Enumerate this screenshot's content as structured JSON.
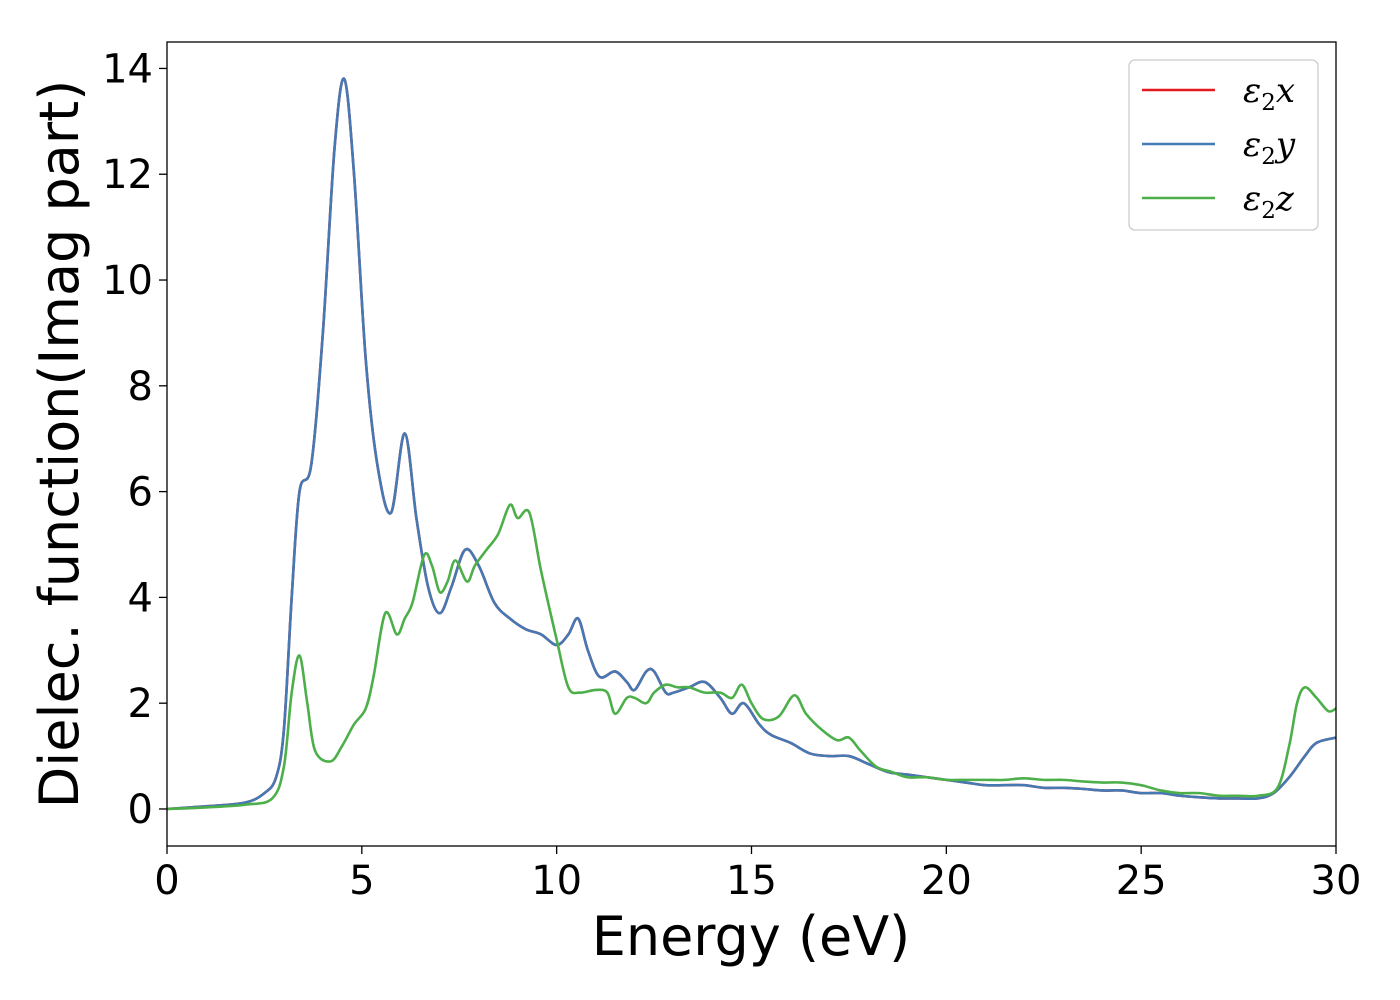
{
  "chart_data": {
    "type": "line",
    "title": "",
    "xlabel": "Energy (eV)",
    "ylabel": "Dielec. function(Imag part)",
    "xlim": [
      0,
      30
    ],
    "ylim": [
      -0.7,
      14.5
    ],
    "xticks": [
      0,
      5,
      10,
      15,
      20,
      25,
      30
    ],
    "yticks": [
      0,
      2,
      4,
      6,
      8,
      10,
      12,
      14
    ],
    "grid": false,
    "legend_position": "top-right",
    "series": [
      {
        "name": "ε₂x",
        "label_base": "ε",
        "label_sub": "2",
        "label_var": "x",
        "color": "#e41a1c",
        "points": [
          [
            0,
            0
          ],
          [
            1,
            0.05
          ],
          [
            2,
            0.12
          ],
          [
            2.5,
            0.3
          ],
          [
            2.8,
            0.6
          ],
          [
            3.0,
            1.5
          ],
          [
            3.2,
            4.0
          ],
          [
            3.4,
            6.0
          ],
          [
            3.7,
            6.5
          ],
          [
            4.0,
            9.0
          ],
          [
            4.3,
            12.5
          ],
          [
            4.55,
            13.8
          ],
          [
            4.8,
            12.0
          ],
          [
            5.1,
            8.5
          ],
          [
            5.4,
            6.5
          ],
          [
            5.75,
            5.6
          ],
          [
            6.1,
            7.1
          ],
          [
            6.4,
            5.5
          ],
          [
            6.7,
            4.2
          ],
          [
            7.0,
            3.7
          ],
          [
            7.3,
            4.2
          ],
          [
            7.65,
            4.9
          ],
          [
            8.0,
            4.6
          ],
          [
            8.4,
            3.9
          ],
          [
            8.8,
            3.6
          ],
          [
            9.2,
            3.4
          ],
          [
            9.6,
            3.3
          ],
          [
            10.0,
            3.1
          ],
          [
            10.3,
            3.3
          ],
          [
            10.55,
            3.6
          ],
          [
            10.8,
            3.0
          ],
          [
            11.1,
            2.5
          ],
          [
            11.5,
            2.6
          ],
          [
            11.8,
            2.4
          ],
          [
            12.0,
            2.25
          ],
          [
            12.3,
            2.6
          ],
          [
            12.5,
            2.6
          ],
          [
            12.8,
            2.2
          ],
          [
            13.0,
            2.2
          ],
          [
            13.4,
            2.3
          ],
          [
            13.8,
            2.4
          ],
          [
            14.2,
            2.1
          ],
          [
            14.5,
            1.8
          ],
          [
            14.8,
            2.0
          ],
          [
            15.2,
            1.6
          ],
          [
            15.5,
            1.4
          ],
          [
            16.0,
            1.25
          ],
          [
            16.5,
            1.05
          ],
          [
            17.0,
            1.0
          ],
          [
            17.5,
            1.0
          ],
          [
            18.0,
            0.85
          ],
          [
            18.5,
            0.7
          ],
          [
            19.0,
            0.65
          ],
          [
            19.5,
            0.6
          ],
          [
            20.0,
            0.55
          ],
          [
            20.5,
            0.5
          ],
          [
            21.0,
            0.45
          ],
          [
            21.5,
            0.45
          ],
          [
            22.0,
            0.45
          ],
          [
            22.5,
            0.4
          ],
          [
            23.0,
            0.4
          ],
          [
            23.5,
            0.38
          ],
          [
            24.0,
            0.35
          ],
          [
            24.5,
            0.35
          ],
          [
            25.0,
            0.3
          ],
          [
            25.5,
            0.3
          ],
          [
            26.0,
            0.25
          ],
          [
            26.5,
            0.22
          ],
          [
            27.0,
            0.2
          ],
          [
            27.5,
            0.2
          ],
          [
            28.0,
            0.2
          ],
          [
            28.4,
            0.3
          ],
          [
            28.8,
            0.6
          ],
          [
            29.2,
            1.0
          ],
          [
            29.5,
            1.25
          ],
          [
            30.0,
            1.35
          ]
        ]
      },
      {
        "name": "ε₂y",
        "label_base": "ε",
        "label_sub": "2",
        "label_var": "y",
        "color": "#4479b4",
        "points": [
          [
            0,
            0
          ],
          [
            1,
            0.05
          ],
          [
            2,
            0.12
          ],
          [
            2.5,
            0.3
          ],
          [
            2.8,
            0.6
          ],
          [
            3.0,
            1.5
          ],
          [
            3.2,
            4.0
          ],
          [
            3.4,
            6.0
          ],
          [
            3.7,
            6.5
          ],
          [
            4.0,
            9.0
          ],
          [
            4.3,
            12.5
          ],
          [
            4.55,
            13.8
          ],
          [
            4.8,
            12.0
          ],
          [
            5.1,
            8.5
          ],
          [
            5.4,
            6.5
          ],
          [
            5.75,
            5.6
          ],
          [
            6.1,
            7.1
          ],
          [
            6.4,
            5.5
          ],
          [
            6.7,
            4.2
          ],
          [
            7.0,
            3.7
          ],
          [
            7.3,
            4.2
          ],
          [
            7.65,
            4.9
          ],
          [
            8.0,
            4.6
          ],
          [
            8.4,
            3.9
          ],
          [
            8.8,
            3.6
          ],
          [
            9.2,
            3.4
          ],
          [
            9.6,
            3.3
          ],
          [
            10.0,
            3.1
          ],
          [
            10.3,
            3.3
          ],
          [
            10.55,
            3.6
          ],
          [
            10.8,
            3.0
          ],
          [
            11.1,
            2.5
          ],
          [
            11.5,
            2.6
          ],
          [
            11.8,
            2.4
          ],
          [
            12.0,
            2.25
          ],
          [
            12.3,
            2.6
          ],
          [
            12.5,
            2.6
          ],
          [
            12.8,
            2.2
          ],
          [
            13.0,
            2.2
          ],
          [
            13.4,
            2.3
          ],
          [
            13.8,
            2.4
          ],
          [
            14.2,
            2.1
          ],
          [
            14.5,
            1.8
          ],
          [
            14.8,
            2.0
          ],
          [
            15.2,
            1.6
          ],
          [
            15.5,
            1.4
          ],
          [
            16.0,
            1.25
          ],
          [
            16.5,
            1.05
          ],
          [
            17.0,
            1.0
          ],
          [
            17.5,
            1.0
          ],
          [
            18.0,
            0.85
          ],
          [
            18.5,
            0.7
          ],
          [
            19.0,
            0.65
          ],
          [
            19.5,
            0.6
          ],
          [
            20.0,
            0.55
          ],
          [
            20.5,
            0.5
          ],
          [
            21.0,
            0.45
          ],
          [
            21.5,
            0.45
          ],
          [
            22.0,
            0.45
          ],
          [
            22.5,
            0.4
          ],
          [
            23.0,
            0.4
          ],
          [
            23.5,
            0.38
          ],
          [
            24.0,
            0.35
          ],
          [
            24.5,
            0.35
          ],
          [
            25.0,
            0.3
          ],
          [
            25.5,
            0.3
          ],
          [
            26.0,
            0.25
          ],
          [
            26.5,
            0.22
          ],
          [
            27.0,
            0.2
          ],
          [
            27.5,
            0.2
          ],
          [
            28.0,
            0.2
          ],
          [
            28.4,
            0.3
          ],
          [
            28.8,
            0.6
          ],
          [
            29.2,
            1.0
          ],
          [
            29.5,
            1.25
          ],
          [
            30.0,
            1.35
          ]
        ]
      },
      {
        "name": "ε₂z",
        "label_base": "ε",
        "label_sub": "2",
        "label_var": "z",
        "color": "#4daf4a",
        "points": [
          [
            0,
            0
          ],
          [
            1,
            0.03
          ],
          [
            2,
            0.08
          ],
          [
            2.7,
            0.2
          ],
          [
            3.0,
            0.8
          ],
          [
            3.2,
            2.2
          ],
          [
            3.4,
            2.9
          ],
          [
            3.6,
            2.0
          ],
          [
            3.8,
            1.1
          ],
          [
            4.2,
            0.9
          ],
          [
            4.5,
            1.2
          ],
          [
            4.8,
            1.6
          ],
          [
            5.1,
            1.9
          ],
          [
            5.3,
            2.5
          ],
          [
            5.6,
            3.7
          ],
          [
            5.9,
            3.3
          ],
          [
            6.1,
            3.6
          ],
          [
            6.3,
            3.9
          ],
          [
            6.6,
            4.8
          ],
          [
            6.8,
            4.6
          ],
          [
            7.0,
            4.1
          ],
          [
            7.2,
            4.3
          ],
          [
            7.4,
            4.7
          ],
          [
            7.7,
            4.3
          ],
          [
            7.9,
            4.6
          ],
          [
            8.2,
            4.9
          ],
          [
            8.5,
            5.2
          ],
          [
            8.8,
            5.75
          ],
          [
            9.0,
            5.5
          ],
          [
            9.3,
            5.6
          ],
          [
            9.6,
            4.5
          ],
          [
            10.0,
            3.2
          ],
          [
            10.3,
            2.3
          ],
          [
            10.6,
            2.2
          ],
          [
            11.0,
            2.25
          ],
          [
            11.3,
            2.2
          ],
          [
            11.5,
            1.8
          ],
          [
            11.8,
            2.1
          ],
          [
            12.0,
            2.1
          ],
          [
            12.3,
            2.0
          ],
          [
            12.5,
            2.2
          ],
          [
            12.8,
            2.35
          ],
          [
            13.1,
            2.3
          ],
          [
            13.4,
            2.3
          ],
          [
            13.8,
            2.2
          ],
          [
            14.2,
            2.2
          ],
          [
            14.5,
            2.1
          ],
          [
            14.75,
            2.35
          ],
          [
            15.0,
            2.0
          ],
          [
            15.3,
            1.7
          ],
          [
            15.7,
            1.75
          ],
          [
            16.1,
            2.15
          ],
          [
            16.4,
            1.8
          ],
          [
            16.8,
            1.5
          ],
          [
            17.2,
            1.3
          ],
          [
            17.5,
            1.35
          ],
          [
            17.8,
            1.1
          ],
          [
            18.2,
            0.8
          ],
          [
            18.6,
            0.7
          ],
          [
            19.0,
            0.6
          ],
          [
            19.5,
            0.6
          ],
          [
            20.0,
            0.55
          ],
          [
            20.5,
            0.55
          ],
          [
            21.0,
            0.55
          ],
          [
            21.5,
            0.55
          ],
          [
            22.0,
            0.58
          ],
          [
            22.5,
            0.55
          ],
          [
            23.0,
            0.55
          ],
          [
            23.5,
            0.52
          ],
          [
            24.0,
            0.5
          ],
          [
            24.5,
            0.5
          ],
          [
            25.0,
            0.45
          ],
          [
            25.5,
            0.35
          ],
          [
            26.0,
            0.3
          ],
          [
            26.5,
            0.3
          ],
          [
            27.0,
            0.25
          ],
          [
            27.5,
            0.25
          ],
          [
            28.0,
            0.25
          ],
          [
            28.5,
            0.4
          ],
          [
            28.8,
            1.2
          ],
          [
            29.0,
            2.0
          ],
          [
            29.2,
            2.3
          ],
          [
            29.5,
            2.1
          ],
          [
            29.8,
            1.85
          ],
          [
            30.0,
            1.9
          ]
        ]
      }
    ]
  }
}
